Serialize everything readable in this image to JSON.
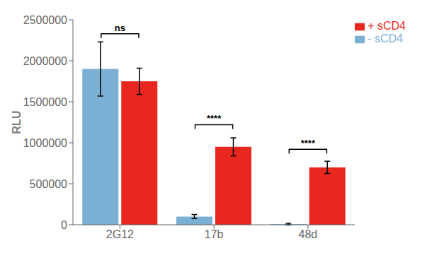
{
  "chart_data": {
    "type": "bar",
    "categories": [
      "2G12",
      "17b",
      "48d"
    ],
    "y_label": "RLU",
    "series": [
      {
        "name": "- sCD4",
        "color": "#7bafd4",
        "values": [
          1900000,
          100000,
          8000
        ],
        "errors": [
          330000,
          25000,
          10000
        ]
      },
      {
        "name": "+ sCD4",
        "color": "#e8281e",
        "values": [
          1750000,
          950000,
          700000
        ],
        "errors": [
          160000,
          110000,
          75000
        ]
      }
    ],
    "ylim": [
      0,
      2500000
    ],
    "yticks": [
      0,
      500000,
      1000000,
      1500000,
      2000000,
      2500000
    ],
    "grid": false,
    "legend": "upper right",
    "annotations": [
      {
        "text": "ns",
        "x": "2G12",
        "y": 2330000
      },
      {
        "text": "****",
        "x": "17b",
        "y": 1220000
      },
      {
        "text": "****",
        "x": "48d",
        "y": 920000
      }
    ]
  }
}
